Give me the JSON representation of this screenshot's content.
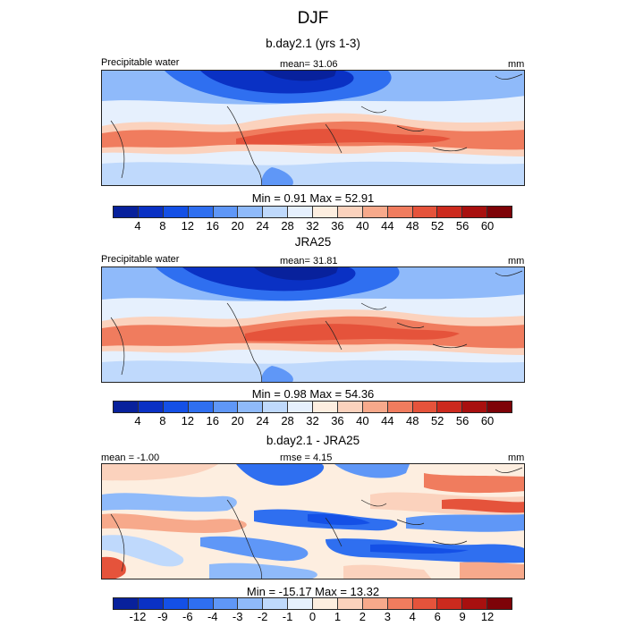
{
  "main_title": "DJF",
  "colors": {
    "precip_levels": [
      "#08219c",
      "#0a31c4",
      "#1450e6",
      "#2f6ff0",
      "#5f97f7",
      "#8fbafa",
      "#bfd9fc",
      "#e6f0fd",
      "#fdeee0",
      "#fbd2bd",
      "#f7a98b",
      "#f07c5e",
      "#e5533b",
      "#cc2a1e",
      "#a8100f",
      "#7e0308"
    ],
    "diff_levels": [
      "#08219c",
      "#0a31c4",
      "#1450e6",
      "#2f6ff0",
      "#5f97f7",
      "#8fbafa",
      "#bfd9fc",
      "#e6f0fd",
      "#fdeee0",
      "#fbd2bd",
      "#f7a98b",
      "#f07c5e",
      "#e5533b",
      "#cc2a1e",
      "#a8100f",
      "#7e0308"
    ]
  },
  "chart_data": [
    {
      "type": "heatmap",
      "title": "b.day2.1 (yrs 1-3)",
      "left_label": "Precipitable water",
      "mean_text": "mean=  31.06",
      "units": "mm",
      "min_max_text": "Min =   0.91 Max =  52.91",
      "min": 0.91,
      "max": 52.91,
      "mean": 31.06,
      "colorbar_ticks": [
        "4",
        "8",
        "12",
        "16",
        "20",
        "24",
        "28",
        "32",
        "36",
        "40",
        "44",
        "48",
        "52",
        "56",
        "60"
      ]
    },
    {
      "type": "heatmap",
      "title": "JRA25",
      "left_label": "Precipitable water",
      "mean_text": "mean=  31.81",
      "units": "mm",
      "min_max_text": "Min =   0.98 Max =  54.36",
      "min": 0.98,
      "max": 54.36,
      "mean": 31.81,
      "colorbar_ticks": [
        "4",
        "8",
        "12",
        "16",
        "20",
        "24",
        "28",
        "32",
        "36",
        "40",
        "44",
        "48",
        "52",
        "56",
        "60"
      ]
    },
    {
      "type": "heatmap",
      "title": "b.day2.1 - JRA25",
      "left_label": "mean = -1.00",
      "mean_text": "rmse =   4.15",
      "units": "mm",
      "min_max_text": "Min = -15.17 Max =  13.32",
      "min": -15.17,
      "max": 13.32,
      "mean": -1.0,
      "rmse": 4.15,
      "colorbar_ticks": [
        "-12",
        "-9",
        "-6",
        "-4",
        "-3",
        "-2",
        "-1",
        "0",
        "1",
        "2",
        "3",
        "4",
        "6",
        "9",
        "12"
      ]
    }
  ]
}
